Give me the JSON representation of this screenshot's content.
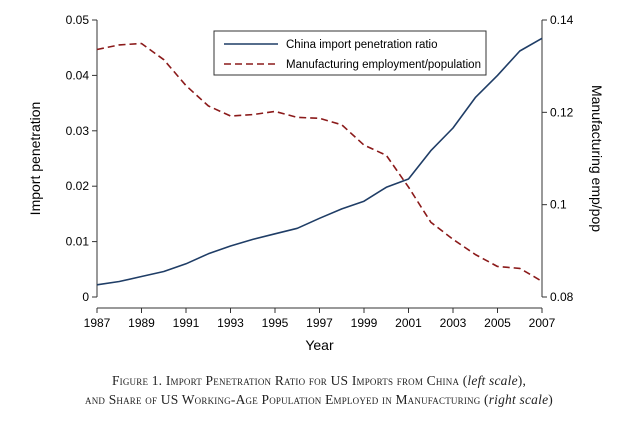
{
  "chart_data": {
    "type": "line",
    "x": [
      1987,
      1988,
      1989,
      1990,
      1991,
      1992,
      1993,
      1994,
      1995,
      1996,
      1997,
      1998,
      1999,
      2000,
      2001,
      2002,
      2003,
      2004,
      2005,
      2006,
      2007
    ],
    "series": [
      {
        "name": "China import penetration ratio",
        "axis": "left",
        "style": "solid",
        "color": "#1f3d66",
        "values": [
          0.0022,
          0.0028,
          0.0037,
          0.0046,
          0.006,
          0.0078,
          0.0092,
          0.0104,
          0.0114,
          0.0124,
          0.0142,
          0.0159,
          0.0173,
          0.0198,
          0.0213,
          0.0264,
          0.0305,
          0.036,
          0.04,
          0.0444,
          0.0467
        ]
      },
      {
        "name": "Manufacturing employment/population",
        "axis": "right",
        "style": "dashed",
        "color": "#8b1a1a",
        "values": [
          0.1336,
          0.1346,
          0.1349,
          0.1314,
          0.1258,
          0.1214,
          0.1192,
          0.1195,
          0.1202,
          0.1189,
          0.1187,
          0.1173,
          0.1129,
          0.1107,
          0.1038,
          0.0962,
          0.0925,
          0.0892,
          0.0866,
          0.0862,
          0.0834
        ]
      }
    ],
    "xlabel": "Year",
    "ylabel_left": "Import penetration",
    "ylabel_right": "Manufacturing emp/pop",
    "xticks": [
      "1987",
      "1989",
      "1991",
      "1993",
      "1995",
      "1997",
      "1999",
      "2001",
      "2003",
      "2005",
      "2007"
    ],
    "yticks_left": [
      "0",
      "0.01",
      "0.02",
      "0.03",
      "0.04",
      "0.05"
    ],
    "yticks_right": [
      "0.08",
      "0.1",
      "0.12",
      "0.14"
    ],
    "ylim_left": [
      0,
      0.05
    ],
    "ylim_right": [
      0.08,
      0.14
    ],
    "xlim": [
      1987,
      2007
    ],
    "legend_position": "top",
    "grid": false
  },
  "caption": {
    "line1_main": "Figure 1. Import Penetration Ratio for US Imports from China (",
    "line1_italic": "left scale",
    "line1_end": "),",
    "line2_main": "and Share of US Working-Age Population Employed in Manufacturing (",
    "line2_italic": "right scale",
    "line2_end": ")"
  }
}
